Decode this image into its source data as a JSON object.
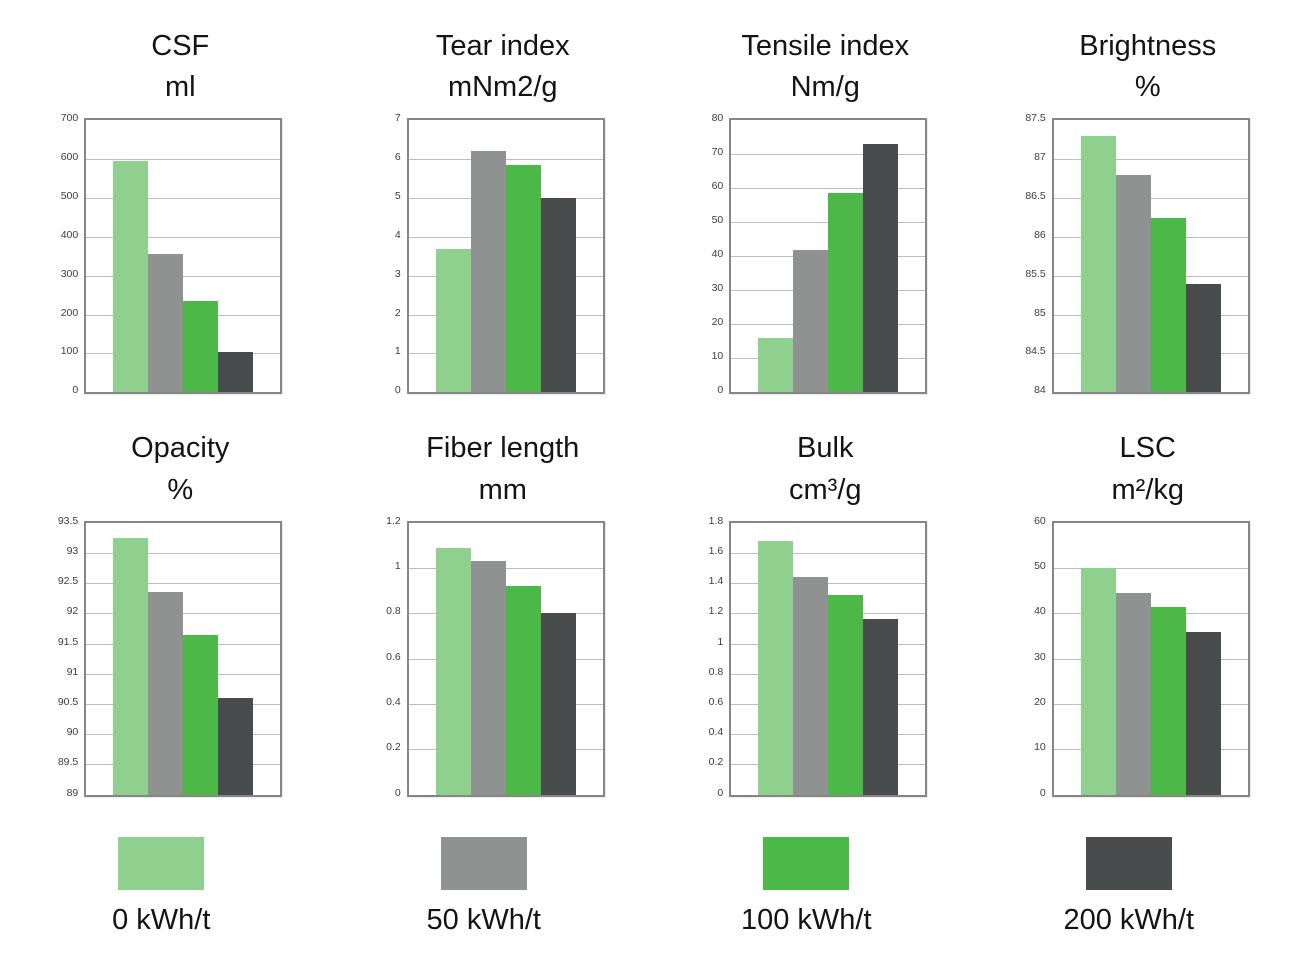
{
  "page": {
    "background": "#ffffff",
    "description": "Grid of eight bar charts comparing pulp properties at four refining energy levels"
  },
  "legend": {
    "items": [
      {
        "label": "0 kWh/t",
        "color": "#8fd08f"
      },
      {
        "label": "50 kWh/t",
        "color": "#909292"
      },
      {
        "label": "100 kWh/t",
        "color": "#4cb848"
      },
      {
        "label": "200 kWh/t",
        "color": "#494c4c"
      }
    ]
  },
  "chart_data": [
    {
      "type": "bar",
      "title": "CSF",
      "ylabel": "ml",
      "categories": [
        "0 kWh/t",
        "50 kWh/t",
        "100 kWh/t",
        "200 kWh/t"
      ],
      "values": [
        595,
        355,
        235,
        105
      ],
      "ylim": [
        0,
        700
      ],
      "yticks": [
        "700",
        "600",
        "500",
        "400",
        "300",
        "200",
        "100",
        "0"
      ],
      "grid": true,
      "legend_position": "none"
    },
    {
      "type": "bar",
      "title": "Tear index",
      "ylabel": "mNm2/g",
      "categories": [
        "0 kWh/t",
        "50 kWh/t",
        "100 kWh/t",
        "200 kWh/t"
      ],
      "values": [
        3.7,
        6.2,
        5.85,
        5.0
      ],
      "ylim": [
        0,
        7
      ],
      "yticks": [
        "7",
        "6",
        "5",
        "4",
        "3",
        "2",
        "1",
        "0"
      ],
      "grid": true,
      "legend_position": "none"
    },
    {
      "type": "bar",
      "title": "Tensile index",
      "ylabel": "Nm/g",
      "categories": [
        "0 kWh/t",
        "50 kWh/t",
        "100 kWh/t",
        "200 kWh/t"
      ],
      "values": [
        16,
        42,
        58.5,
        73
      ],
      "ylim": [
        0,
        80
      ],
      "yticks": [
        "80",
        "70",
        "60",
        "50",
        "40",
        "30",
        "20",
        "10",
        "0"
      ],
      "grid": true,
      "legend_position": "none"
    },
    {
      "type": "bar",
      "title": "Brightness",
      "ylabel": "%",
      "categories": [
        "0 kWh/t",
        "50 kWh/t",
        "100 kWh/t",
        "200 kWh/t"
      ],
      "values": [
        87.3,
        86.8,
        86.25,
        85.4
      ],
      "ylim": [
        84,
        87.5
      ],
      "yticks": [
        "87.5",
        "87",
        "86.5",
        "86",
        "85.5",
        "85",
        "84.5",
        "84"
      ],
      "grid": true,
      "legend_position": "none"
    },
    {
      "type": "bar",
      "title": "Opacity",
      "ylabel": "%",
      "categories": [
        "0 kWh/t",
        "50 kWh/t",
        "100 kWh/t",
        "200 kWh/t"
      ],
      "values": [
        93.25,
        92.35,
        91.65,
        90.6
      ],
      "ylim": [
        89,
        93.5
      ],
      "yticks": [
        "93.5",
        "93",
        "92.5",
        "92",
        "91.5",
        "91",
        "90.5",
        "90",
        "89.5",
        "89"
      ],
      "grid": true,
      "legend_position": "none"
    },
    {
      "type": "bar",
      "title": "Fiber length",
      "ylabel": "mm",
      "categories": [
        "0 kWh/t",
        "50 kWh/t",
        "100 kWh/t",
        "200 kWh/t"
      ],
      "values": [
        1.09,
        1.03,
        0.92,
        0.8
      ],
      "ylim": [
        0,
        1.2
      ],
      "yticks": [
        "1.2",
        "1",
        "0.8",
        "0.6",
        "0.4",
        "0.2",
        "0"
      ],
      "grid": true,
      "legend_position": "none"
    },
    {
      "type": "bar",
      "title": "Bulk",
      "ylabel": "cm³/g",
      "categories": [
        "0 kWh/t",
        "50 kWh/t",
        "100 kWh/t",
        "200 kWh/t"
      ],
      "values": [
        1.68,
        1.44,
        1.32,
        1.16
      ],
      "ylim": [
        0,
        1.8
      ],
      "yticks": [
        "1.8",
        "1.6",
        "1.4",
        "1.2",
        "1",
        "0.8",
        "0.6",
        "0.4",
        "0.2",
        "0"
      ],
      "grid": true,
      "legend_position": "none"
    },
    {
      "type": "bar",
      "title": "LSC",
      "ylabel": "m²/kg",
      "categories": [
        "0 kWh/t",
        "50 kWh/t",
        "100 kWh/t",
        "200 kWh/t"
      ],
      "values": [
        50,
        44.5,
        41.3,
        36
      ],
      "ylim": [
        0,
        60
      ],
      "yticks": [
        "60",
        "50",
        "40",
        "30",
        "20",
        "10",
        "0"
      ],
      "grid": true,
      "legend_position": "none"
    }
  ]
}
